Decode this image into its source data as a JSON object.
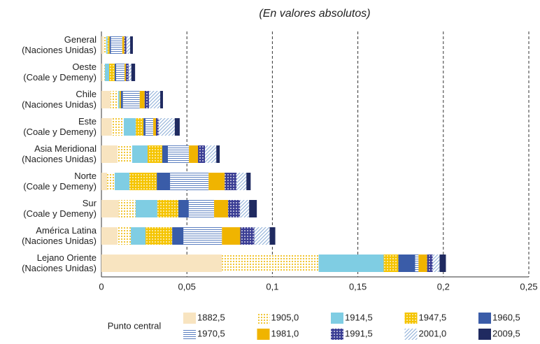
{
  "chart_data": {
    "type": "stacked_barh",
    "subtitle": "(En valores absolutos)",
    "categories": [
      [
        "General",
        "(Naciones Unidas)"
      ],
      [
        "Oeste",
        "(Coale y Demeny)"
      ],
      [
        "Chile",
        "(Naciones Unidas)"
      ],
      [
        "Este",
        "(Coale y Demeny)"
      ],
      [
        "Asia Meridional",
        "(Naciones Unidas)"
      ],
      [
        "Norte",
        "(Coale y Demeny)"
      ],
      [
        "Sur",
        "(Coale y Demeny)"
      ],
      [
        "América Latina",
        "(Naciones Unidas)"
      ],
      [
        "Lejano Oriente",
        "(Naciones Unidas)"
      ]
    ],
    "legend_title": "Punto central",
    "series": [
      {
        "name": "1882,5",
        "color": "#f8e4c0",
        "pattern": "solid",
        "values": [
          0.0012,
          0.0008,
          0.0053,
          0.0061,
          0.0094,
          0.0033,
          0.0102,
          0.0094,
          0.0705
        ]
      },
      {
        "name": "1905,0",
        "color": "#f0c020",
        "pattern": "dots",
        "values": [
          0.0016,
          0.0012,
          0.0045,
          0.007,
          0.0086,
          0.0045,
          0.0098,
          0.0078,
          0.0566
        ]
      },
      {
        "name": "1914,5",
        "color": "#7fcde3",
        "pattern": "solid",
        "values": [
          0.0008,
          0.0025,
          0.0008,
          0.007,
          0.009,
          0.0086,
          0.0127,
          0.0086,
          0.038
        ]
      },
      {
        "name": "1947,5",
        "color": "#f5c400",
        "pattern": "holes",
        "values": [
          0.0012,
          0.0033,
          0.0008,
          0.0045,
          0.0086,
          0.016,
          0.0123,
          0.0156,
          0.0086
        ]
      },
      {
        "name": "1960,5",
        "color": "#3a5ca8",
        "pattern": "solid",
        "values": [
          0.0008,
          0.0008,
          0.0012,
          0.0012,
          0.0033,
          0.0078,
          0.0061,
          0.0066,
          0.0098
        ]
      },
      {
        "name": "1970,5",
        "color": "#5b7fc0",
        "pattern": "hlines",
        "values": [
          0.0066,
          0.0049,
          0.0098,
          0.0045,
          0.0123,
          0.0225,
          0.0148,
          0.0225,
          0.002
        ]
      },
      {
        "name": "1981,0",
        "color": "#f0b400",
        "pattern": "solid",
        "values": [
          0.0012,
          0.0008,
          0.0029,
          0.0016,
          0.0053,
          0.0094,
          0.0082,
          0.0107,
          0.005
        ]
      },
      {
        "name": "1991,5",
        "color": "#3a3d94",
        "pattern": "holes",
        "values": [
          0.0012,
          0.0016,
          0.0025,
          0.0016,
          0.0041,
          0.007,
          0.007,
          0.0082,
          0.0033
        ]
      },
      {
        "name": "2001,0",
        "color": "#8fb0d8",
        "pattern": "diag",
        "values": [
          0.0022,
          0.0016,
          0.0066,
          0.0094,
          0.0066,
          0.0057,
          0.0053,
          0.009,
          0.004
        ]
      },
      {
        "name": "2009,5",
        "color": "#1f2a60",
        "pattern": "solid",
        "values": [
          0.0016,
          0.0022,
          0.0016,
          0.0029,
          0.002,
          0.0025,
          0.0045,
          0.0033,
          0.0037
        ]
      }
    ],
    "xlim": [
      0,
      0.25
    ],
    "xticks": [
      0,
      {
        "value": 0.05,
        "label": "0,05"
      },
      {
        "value": 0.1,
        "label": "0,1"
      },
      {
        "value": 0.15,
        "label": "0,15"
      },
      {
        "value": 0.2,
        "label": "0,2"
      },
      {
        "value": 0.25,
        "label": "0,25"
      }
    ],
    "grid": true
  }
}
